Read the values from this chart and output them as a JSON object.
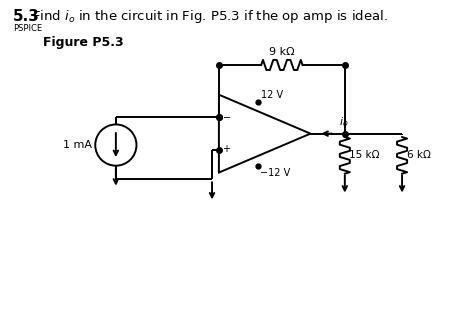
{
  "bg_color": "#ffffff",
  "line_color": "#000000",
  "resistor_9k_label": "9 kΩ",
  "resistor_15k_label": "15 kΩ",
  "resistor_6k_label": "6 kΩ",
  "current_label": "1 mA",
  "v_pos_label": "12 V",
  "v_neg_label": "−12 V",
  "io_label": "i_o",
  "title_num": "5.3",
  "title_rest": "  Find ",
  "title_io": "i",
  "title_o_sub": "o",
  "title_end": " in the circuit in Fig. P5.3 if the op amp is ideal.",
  "pspice": "PSPICE",
  "fig_label": "Figure P5.3",
  "lw": 1.4,
  "cs_r": 0.9,
  "oa_hw": 2.0,
  "oa_hh": 1.7
}
